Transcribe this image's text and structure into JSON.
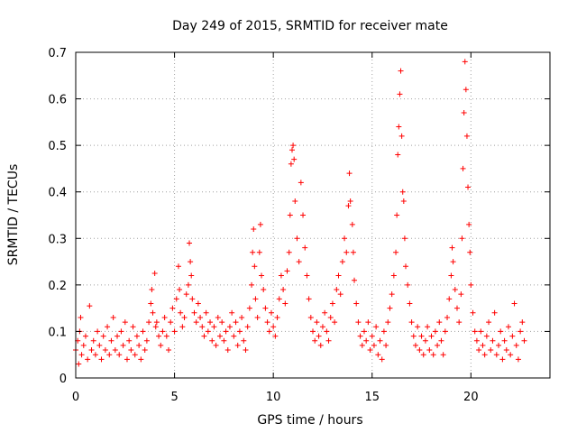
{
  "chart_data": {
    "type": "scatter",
    "title": "Day 249 of 2015, SRMTID for receiver mate",
    "xlabel": "GPS time / hours",
    "ylabel": "SRMTID / TECUs",
    "xlim": [
      0,
      24
    ],
    "ylim": [
      0,
      0.7
    ],
    "xticks": [
      0,
      5,
      10,
      15,
      20
    ],
    "yticks": [
      0,
      0.1,
      0.2,
      0.3,
      0.4,
      0.5,
      0.6,
      0.7
    ],
    "grid": true,
    "marker": "+",
    "color": "#ff0000",
    "series": [
      {
        "name": "SRMTID",
        "points": [
          [
            0.0,
            0.06
          ],
          [
            0.1,
            0.08
          ],
          [
            0.15,
            0.03
          ],
          [
            0.2,
            0.1
          ],
          [
            0.25,
            0.13
          ],
          [
            0.3,
            0.05
          ],
          [
            0.4,
            0.07
          ],
          [
            0.5,
            0.09
          ],
          [
            0.6,
            0.04
          ],
          [
            0.7,
            0.155
          ],
          [
            0.8,
            0.06
          ],
          [
            0.9,
            0.08
          ],
          [
            1.0,
            0.05
          ],
          [
            1.1,
            0.1
          ],
          [
            1.2,
            0.07
          ],
          [
            1.3,
            0.04
          ],
          [
            1.4,
            0.09
          ],
          [
            1.5,
            0.06
          ],
          [
            1.6,
            0.11
          ],
          [
            1.7,
            0.05
          ],
          [
            1.8,
            0.08
          ],
          [
            1.9,
            0.13
          ],
          [
            2.0,
            0.06
          ],
          [
            2.1,
            0.09
          ],
          [
            2.2,
            0.05
          ],
          [
            2.3,
            0.1
          ],
          [
            2.4,
            0.07
          ],
          [
            2.5,
            0.12
          ],
          [
            2.6,
            0.04
          ],
          [
            2.7,
            0.08
          ],
          [
            2.8,
            0.06
          ],
          [
            2.9,
            0.11
          ],
          [
            3.0,
            0.05
          ],
          [
            3.1,
            0.09
          ],
          [
            3.2,
            0.07
          ],
          [
            3.3,
            0.04
          ],
          [
            3.4,
            0.1
          ],
          [
            3.5,
            0.06
          ],
          [
            3.6,
            0.08
          ],
          [
            3.7,
            0.12
          ],
          [
            3.8,
            0.16
          ],
          [
            3.85,
            0.19
          ],
          [
            3.9,
            0.14
          ],
          [
            4.0,
            0.225
          ],
          [
            4.05,
            0.11
          ],
          [
            4.1,
            0.12
          ],
          [
            4.2,
            0.09
          ],
          [
            4.3,
            0.07
          ],
          [
            4.4,
            0.1
          ],
          [
            4.5,
            0.13
          ],
          [
            4.6,
            0.09
          ],
          [
            4.7,
            0.06
          ],
          [
            4.8,
            0.12
          ],
          [
            4.9,
            0.15
          ],
          [
            5.0,
            0.1
          ],
          [
            5.1,
            0.17
          ],
          [
            5.2,
            0.24
          ],
          [
            5.25,
            0.19
          ],
          [
            5.3,
            0.14
          ],
          [
            5.4,
            0.11
          ],
          [
            5.5,
            0.13
          ],
          [
            5.6,
            0.18
          ],
          [
            5.7,
            0.2
          ],
          [
            5.75,
            0.29
          ],
          [
            5.8,
            0.25
          ],
          [
            5.85,
            0.22
          ],
          [
            5.9,
            0.17
          ],
          [
            6.0,
            0.14
          ],
          [
            6.1,
            0.12
          ],
          [
            6.2,
            0.16
          ],
          [
            6.3,
            0.13
          ],
          [
            6.4,
            0.11
          ],
          [
            6.5,
            0.09
          ],
          [
            6.6,
            0.14
          ],
          [
            6.7,
            0.1
          ],
          [
            6.8,
            0.12
          ],
          [
            6.9,
            0.08
          ],
          [
            7.0,
            0.11
          ],
          [
            7.1,
            0.07
          ],
          [
            7.2,
            0.13
          ],
          [
            7.3,
            0.09
          ],
          [
            7.4,
            0.12
          ],
          [
            7.5,
            0.08
          ],
          [
            7.6,
            0.1
          ],
          [
            7.7,
            0.06
          ],
          [
            7.8,
            0.11
          ],
          [
            7.9,
            0.14
          ],
          [
            8.0,
            0.09
          ],
          [
            8.1,
            0.12
          ],
          [
            8.2,
            0.07
          ],
          [
            8.3,
            0.1
          ],
          [
            8.4,
            0.13
          ],
          [
            8.5,
            0.08
          ],
          [
            8.6,
            0.06
          ],
          [
            8.7,
            0.11
          ],
          [
            8.8,
            0.15
          ],
          [
            8.9,
            0.2
          ],
          [
            8.95,
            0.27
          ],
          [
            9.0,
            0.32
          ],
          [
            9.05,
            0.24
          ],
          [
            9.1,
            0.17
          ],
          [
            9.2,
            0.13
          ],
          [
            9.3,
            0.27
          ],
          [
            9.35,
            0.33
          ],
          [
            9.4,
            0.22
          ],
          [
            9.5,
            0.19
          ],
          [
            9.6,
            0.15
          ],
          [
            9.7,
            0.12
          ],
          [
            9.8,
            0.1
          ],
          [
            9.9,
            0.14
          ],
          [
            10.0,
            0.11
          ],
          [
            10.1,
            0.09
          ],
          [
            10.2,
            0.13
          ],
          [
            10.3,
            0.17
          ],
          [
            10.4,
            0.22
          ],
          [
            10.5,
            0.19
          ],
          [
            10.6,
            0.16
          ],
          [
            10.7,
            0.23
          ],
          [
            10.8,
            0.27
          ],
          [
            10.85,
            0.35
          ],
          [
            10.9,
            0.46
          ],
          [
            10.95,
            0.49
          ],
          [
            11.0,
            0.5
          ],
          [
            11.05,
            0.47
          ],
          [
            11.1,
            0.38
          ],
          [
            11.2,
            0.3
          ],
          [
            11.3,
            0.25
          ],
          [
            11.4,
            0.42
          ],
          [
            11.5,
            0.35
          ],
          [
            11.6,
            0.28
          ],
          [
            11.7,
            0.22
          ],
          [
            11.8,
            0.17
          ],
          [
            11.9,
            0.13
          ],
          [
            12.0,
            0.1
          ],
          [
            12.1,
            0.08
          ],
          [
            12.2,
            0.12
          ],
          [
            12.3,
            0.09
          ],
          [
            12.4,
            0.07
          ],
          [
            12.5,
            0.11
          ],
          [
            12.6,
            0.14
          ],
          [
            12.7,
            0.1
          ],
          [
            12.8,
            0.08
          ],
          [
            12.9,
            0.13
          ],
          [
            13.0,
            0.16
          ],
          [
            13.1,
            0.12
          ],
          [
            13.2,
            0.19
          ],
          [
            13.3,
            0.22
          ],
          [
            13.4,
            0.18
          ],
          [
            13.5,
            0.25
          ],
          [
            13.6,
            0.3
          ],
          [
            13.7,
            0.27
          ],
          [
            13.8,
            0.37
          ],
          [
            13.85,
            0.44
          ],
          [
            13.9,
            0.38
          ],
          [
            14.0,
            0.33
          ],
          [
            14.05,
            0.27
          ],
          [
            14.1,
            0.21
          ],
          [
            14.2,
            0.16
          ],
          [
            14.3,
            0.12
          ],
          [
            14.4,
            0.09
          ],
          [
            14.5,
            0.07
          ],
          [
            14.6,
            0.1
          ],
          [
            14.7,
            0.08
          ],
          [
            14.8,
            0.12
          ],
          [
            14.9,
            0.06
          ],
          [
            15.0,
            0.09
          ],
          [
            15.1,
            0.07
          ],
          [
            15.2,
            0.11
          ],
          [
            15.3,
            0.05
          ],
          [
            15.4,
            0.08
          ],
          [
            15.5,
            0.04
          ],
          [
            15.6,
            0.1
          ],
          [
            15.7,
            0.07
          ],
          [
            15.8,
            0.12
          ],
          [
            15.9,
            0.15
          ],
          [
            16.0,
            0.18
          ],
          [
            16.1,
            0.22
          ],
          [
            16.2,
            0.27
          ],
          [
            16.25,
            0.35
          ],
          [
            16.3,
            0.48
          ],
          [
            16.35,
            0.54
          ],
          [
            16.4,
            0.61
          ],
          [
            16.45,
            0.66
          ],
          [
            16.5,
            0.52
          ],
          [
            16.55,
            0.4
          ],
          [
            16.6,
            0.38
          ],
          [
            16.65,
            0.3
          ],
          [
            16.7,
            0.24
          ],
          [
            16.8,
            0.2
          ],
          [
            16.9,
            0.16
          ],
          [
            17.0,
            0.12
          ],
          [
            17.1,
            0.09
          ],
          [
            17.2,
            0.07
          ],
          [
            17.3,
            0.11
          ],
          [
            17.4,
            0.06
          ],
          [
            17.5,
            0.09
          ],
          [
            17.6,
            0.05
          ],
          [
            17.7,
            0.08
          ],
          [
            17.8,
            0.11
          ],
          [
            17.9,
            0.06
          ],
          [
            18.0,
            0.09
          ],
          [
            18.1,
            0.05
          ],
          [
            18.2,
            0.1
          ],
          [
            18.3,
            0.07
          ],
          [
            18.4,
            0.12
          ],
          [
            18.5,
            0.08
          ],
          [
            18.6,
            0.05
          ],
          [
            18.7,
            0.1
          ],
          [
            18.8,
            0.13
          ],
          [
            18.9,
            0.17
          ],
          [
            19.0,
            0.22
          ],
          [
            19.05,
            0.28
          ],
          [
            19.1,
            0.25
          ],
          [
            19.2,
            0.19
          ],
          [
            19.3,
            0.15
          ],
          [
            19.4,
            0.12
          ],
          [
            19.5,
            0.18
          ],
          [
            19.55,
            0.3
          ],
          [
            19.6,
            0.45
          ],
          [
            19.65,
            0.57
          ],
          [
            19.7,
            0.68
          ],
          [
            19.75,
            0.62
          ],
          [
            19.8,
            0.52
          ],
          [
            19.85,
            0.41
          ],
          [
            19.9,
            0.33
          ],
          [
            19.95,
            0.27
          ],
          [
            20.0,
            0.2
          ],
          [
            20.1,
            0.14
          ],
          [
            20.2,
            0.1
          ],
          [
            20.3,
            0.08
          ],
          [
            20.4,
            0.06
          ],
          [
            20.5,
            0.1
          ],
          [
            20.6,
            0.07
          ],
          [
            20.7,
            0.05
          ],
          [
            20.8,
            0.09
          ],
          [
            20.9,
            0.12
          ],
          [
            21.0,
            0.06
          ],
          [
            21.1,
            0.08
          ],
          [
            21.2,
            0.14
          ],
          [
            21.3,
            0.05
          ],
          [
            21.4,
            0.07
          ],
          [
            21.5,
            0.1
          ],
          [
            21.6,
            0.04
          ],
          [
            21.7,
            0.08
          ],
          [
            21.8,
            0.06
          ],
          [
            21.9,
            0.11
          ],
          [
            22.0,
            0.05
          ],
          [
            22.1,
            0.09
          ],
          [
            22.2,
            0.16
          ],
          [
            22.3,
            0.07
          ],
          [
            22.4,
            0.04
          ],
          [
            22.5,
            0.1
          ],
          [
            22.6,
            0.12
          ],
          [
            22.7,
            0.08
          ]
        ]
      }
    ]
  }
}
